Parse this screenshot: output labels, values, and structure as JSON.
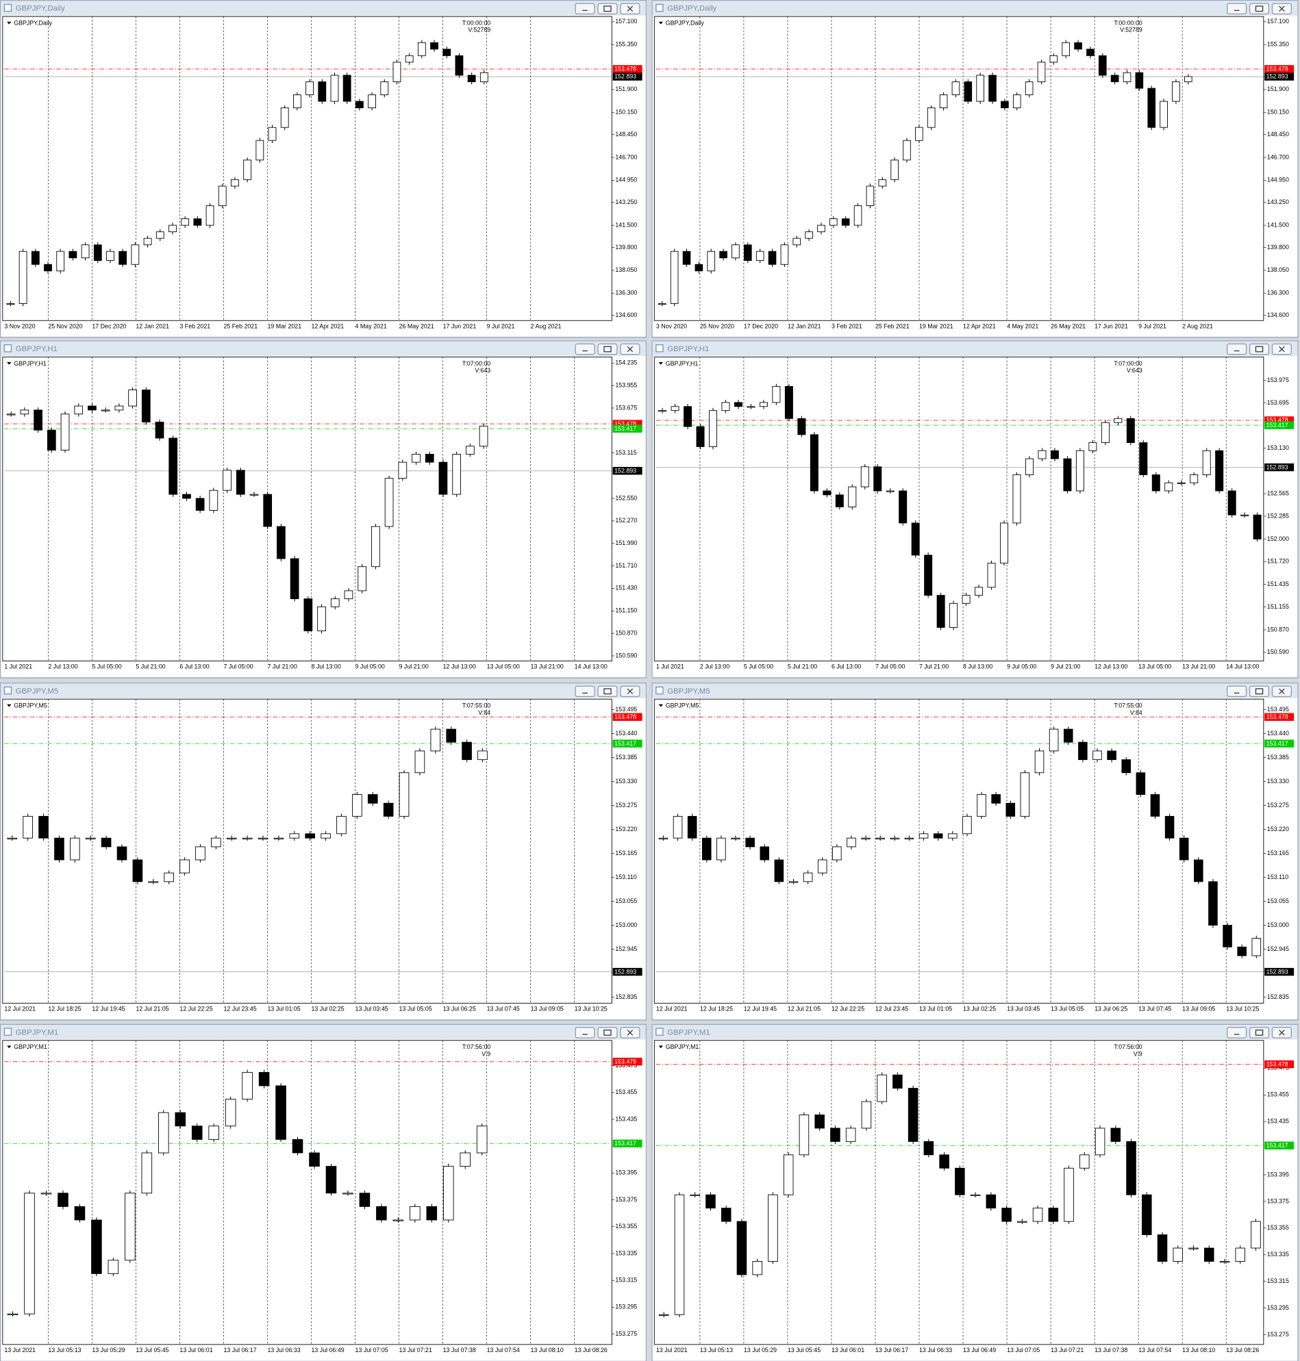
{
  "windows": [
    {
      "title": "GBPJPY,Daily",
      "chart_data": {
        "type": "candlestick",
        "symbol": "GBPJPY,Daily",
        "info": [
          "T:00:00:00",
          "V:52789"
        ],
        "time_labels": [
          "3 Nov 2020",
          "25 Nov 2020",
          "17 Dec 2020",
          "12 Jan 2021",
          "3 Feb 2021",
          "25 Feb 2021",
          "19 Mar 2021",
          "12 Apr 2021",
          "4 May 2021",
          "26 May 2021",
          "17 Jun 2021",
          "9 Jul 2021",
          "2 Aug 2021"
        ],
        "ylim": [
          134.33,
          157.37
        ],
        "yticks": [
          {
            "value": 157.1,
            "label": "157.100"
          },
          {
            "value": 155.35,
            "label": "155.350"
          },
          {
            "value": 151.9,
            "label": "151.900"
          },
          {
            "value": 150.15,
            "label": "150.150"
          },
          {
            "value": 148.45,
            "label": "148.450"
          },
          {
            "value": 146.7,
            "label": "146.700"
          },
          {
            "value": 144.95,
            "label": "144.950"
          },
          {
            "value": 143.25,
            "label": "143.250"
          },
          {
            "value": 141.5,
            "label": "141.500"
          },
          {
            "value": 139.8,
            "label": "139.800"
          },
          {
            "value": 138.05,
            "label": "138.050"
          },
          {
            "value": 136.3,
            "label": "136.300"
          },
          {
            "value": 134.6,
            "label": "134.600"
          }
        ],
        "price_lines": [
          {
            "value": 153.478,
            "label": "153.478",
            "color": "#ff0000"
          },
          {
            "value": 152.893,
            "label": "152.893",
            "color": "#000000"
          }
        ],
        "values": [
          135.5,
          139.5,
          138.5,
          138.0,
          139.5,
          139.0,
          140.0,
          138.8,
          139.5,
          138.5,
          140.0,
          140.5,
          141.0,
          141.5,
          142.0,
          141.5,
          143.0,
          144.5,
          145.0,
          146.5,
          148.0,
          149.0,
          150.5,
          151.5,
          152.5,
          151.0,
          153.0,
          151.0,
          150.5,
          151.5,
          152.5,
          154.0,
          154.5,
          155.5,
          155.0,
          154.5,
          153.0,
          152.5,
          153.2
        ]
      }
    },
    {
      "title": "GBPJPY,Daily",
      "chart_data": {
        "type": "candlestick",
        "symbol": "GBPJPY,Daily",
        "info": [
          "T:00:00:00",
          "V:52789"
        ],
        "time_labels": [
          "3 Nov 2020",
          "25 Nov 2020",
          "17 Dec 2020",
          "12 Jan 2021",
          "3 Feb 2021",
          "25 Feb 2021",
          "19 Mar 2021",
          "12 Apr 2021",
          "4 May 2021",
          "26 May 2021",
          "17 Jun 2021",
          "9 Jul 2021",
          "2 Aug 2021"
        ],
        "ylim": [
          134.33,
          157.37
        ],
        "yticks": [
          {
            "value": 157.1,
            "label": "157.100"
          },
          {
            "value": 155.35,
            "label": "155.350"
          },
          {
            "value": 151.9,
            "label": "151.900"
          },
          {
            "value": 150.15,
            "label": "150.150"
          },
          {
            "value": 148.45,
            "label": "148.450"
          },
          {
            "value": 146.7,
            "label": "146.700"
          },
          {
            "value": 144.95,
            "label": "144.950"
          },
          {
            "value": 143.25,
            "label": "143.250"
          },
          {
            "value": 141.5,
            "label": "141.500"
          },
          {
            "value": 139.8,
            "label": "139.800"
          },
          {
            "value": 138.05,
            "label": "138.050"
          },
          {
            "value": 136.3,
            "label": "136.300"
          },
          {
            "value": 134.6,
            "label": "134.600"
          }
        ],
        "price_lines": [
          {
            "value": 153.478,
            "label": "153.478",
            "color": "#ff0000"
          },
          {
            "value": 152.893,
            "label": "152.893",
            "color": "#000000"
          }
        ],
        "values": [
          135.5,
          139.5,
          138.5,
          138.0,
          139.5,
          139.0,
          140.0,
          138.8,
          139.5,
          138.5,
          140.0,
          140.5,
          141.0,
          141.5,
          142.0,
          141.5,
          143.0,
          144.5,
          145.0,
          146.5,
          148.0,
          149.0,
          150.5,
          151.5,
          152.5,
          151.0,
          153.0,
          151.0,
          150.5,
          151.5,
          152.5,
          154.0,
          154.5,
          155.5,
          155.0,
          154.5,
          153.0,
          152.5,
          153.2,
          152.0,
          149.0,
          151.0,
          152.5,
          152.9
        ]
      }
    },
    {
      "title": "GBPJPY,H1",
      "chart_data": {
        "type": "candlestick",
        "symbol": "GBPJPY,H1",
        "info": [
          "T:07:00:00",
          "V:643"
        ],
        "time_labels": [
          "1 Jul 2021",
          "2 Jul 13:00",
          "5 Jul 05:00",
          "5 Jul 21:00",
          "6 Jul 13:00",
          "7 Jul 05:00",
          "7 Jul 21:00",
          "8 Jul 13:00",
          "9 Jul 05:00",
          "9 Jul 21:00",
          "12 Jul 13:00",
          "13 Jul 05:00",
          "13 Jul 21:00",
          "14 Jul 13:00"
        ],
        "ylim": [
          150.547,
          154.289
        ],
        "yticks": [
          154.235,
          153.955,
          153.675,
          153.115,
          {
            "value": 152.55,
            "label": "152.550"
          },
          {
            "value": 152.27,
            "label": "152.270"
          },
          {
            "value": 151.99,
            "label": "151.990"
          },
          {
            "value": 151.71,
            "label": "151.710"
          },
          {
            "value": 151.43,
            "label": "151.430"
          },
          {
            "value": 151.15,
            "label": "151.150"
          },
          {
            "value": 150.87,
            "label": "150.870"
          },
          {
            "value": 150.59,
            "label": "150.590"
          }
        ],
        "price_lines": [
          {
            "value": 153.478,
            "label": "153.478",
            "color": "#ff0000"
          },
          {
            "value": 153.417,
            "label": "153.417",
            "color": "#00cc00"
          },
          {
            "value": 152.893,
            "label": "152.893",
            "color": "#000000"
          }
        ],
        "values": [
          153.6,
          153.65,
          153.4,
          153.15,
          153.6,
          153.7,
          153.65,
          153.65,
          153.7,
          153.9,
          153.5,
          153.3,
          152.6,
          152.55,
          152.4,
          152.65,
          152.9,
          152.6,
          152.6,
          152.2,
          151.8,
          151.3,
          150.9,
          151.2,
          151.3,
          151.4,
          151.7,
          152.2,
          152.8,
          153.0,
          153.1,
          153.0,
          152.6,
          153.1,
          153.2,
          153.45
        ]
      }
    },
    {
      "title": "GBPJPY,H1",
      "chart_data": {
        "type": "candlestick",
        "symbol": "GBPJPY,H1",
        "info": [
          "T:07:00:00",
          "V:643"
        ],
        "time_labels": [
          "1 Jul 2021",
          "2 Jul 13:00",
          "5 Jul 05:00",
          "5 Jul 21:00",
          "6 Jul 13:00",
          "7 Jul 05:00",
          "7 Jul 21:00",
          "8 Jul 13:00",
          "9 Jul 05:00",
          "9 Jul 21:00",
          "12 Jul 13:00",
          "13 Jul 05:00",
          "13 Jul 21:00",
          "14 Jul 13:00"
        ],
        "ylim": [
          150.504,
          154.245
        ],
        "yticks": [
          153.975,
          153.695,
          {
            "value": 153.13,
            "label": "153.130"
          },
          152.565,
          152.285,
          {
            "value": 152,
            "label": "152.000"
          },
          {
            "value": 151.72,
            "label": "151.720"
          },
          151.435,
          151.155,
          {
            "value": 150.87,
            "label": "150.870"
          },
          {
            "value": 150.59,
            "label": "150.590"
          }
        ],
        "price_lines": [
          {
            "value": 153.478,
            "label": "153.478",
            "color": "#ff0000"
          },
          {
            "value": 153.417,
            "label": "153.417",
            "color": "#00cc00"
          },
          {
            "value": 152.893,
            "label": "152.893",
            "color": "#000000"
          }
        ],
        "values": [
          153.6,
          153.65,
          153.4,
          153.15,
          153.6,
          153.7,
          153.65,
          153.65,
          153.7,
          153.9,
          153.5,
          153.3,
          152.6,
          152.55,
          152.4,
          152.65,
          152.9,
          152.6,
          152.6,
          152.2,
          151.8,
          151.3,
          150.9,
          151.2,
          151.3,
          151.4,
          151.7,
          152.2,
          152.8,
          153.0,
          153.1,
          153.0,
          152.6,
          153.1,
          153.2,
          153.45,
          153.5,
          153.2,
          152.8,
          152.6,
          152.7,
          152.7,
          152.8,
          153.1,
          152.6,
          152.3,
          152.3,
          152.0
        ]
      }
    },
    {
      "title": "GBPJPY,M5",
      "chart_data": {
        "type": "candlestick",
        "symbol": "GBPJPY,M5",
        "info": [
          "T:07:55:00",
          "V:84"
        ],
        "time_labels": [
          "12 Jul 2021",
          "12 Jul 18:25",
          "12 Jul 19:45",
          "12 Jul 21:05",
          "12 Jul 22:25",
          "12 Jul 23:45",
          "13 Jul 01:05",
          "13 Jul 02:25",
          "13 Jul 03:45",
          "13 Jul 05:05",
          "13 Jul 06:25",
          "13 Jul 07:45",
          "13 Jul 09:05",
          "13 Jul 10:25"
        ],
        "ylim": [
          152.825,
          153.515
        ],
        "yticks": [
          153.495,
          {
            "value": 153.44,
            "label": "153.440"
          },
          153.385,
          {
            "value": 153.33,
            "label": "153.330"
          },
          153.275,
          {
            "value": 153.22,
            "label": "153.220"
          },
          153.165,
          {
            "value": 153.11,
            "label": "153.110"
          },
          153.055,
          {
            "value": 153,
            "label": "153.000"
          },
          152.945,
          152.835
        ],
        "price_lines": [
          {
            "value": 153.478,
            "label": "153.478",
            "color": "#ff0000"
          },
          {
            "value": 153.417,
            "label": "153.417",
            "color": "#00cc00"
          },
          {
            "value": 152.893,
            "label": "152.893",
            "color": "#000000"
          }
        ],
        "values": [
          153.2,
          153.25,
          153.2,
          153.15,
          153.2,
          153.2,
          153.18,
          153.15,
          153.1,
          153.1,
          153.12,
          153.15,
          153.18,
          153.2,
          153.2,
          153.2,
          153.2,
          153.2,
          153.21,
          153.2,
          153.21,
          153.25,
          153.3,
          153.28,
          153.25,
          153.35,
          153.4,
          153.45,
          153.42,
          153.38,
          153.4
        ]
      }
    },
    {
      "title": "GBPJPY,M5",
      "chart_data": {
        "type": "candlestick",
        "symbol": "GBPJPY,M5",
        "info": [
          "T:07:55:00",
          "V:84"
        ],
        "time_labels": [
          "12 Jul 2021",
          "12 Jul 18:25",
          "12 Jul 19:45",
          "12 Jul 21:05",
          "12 Jul 22:25",
          "12 Jul 23:45",
          "13 Jul 01:05",
          "13 Jul 02:25",
          "13 Jul 03:45",
          "13 Jul 05:05",
          "13 Jul 06:25",
          "13 Jul 07:45",
          "13 Jul 09:05",
          "13 Jul 10:25"
        ],
        "ylim": [
          152.825,
          153.515
        ],
        "yticks": [
          153.495,
          {
            "value": 153.44,
            "label": "153.440"
          },
          153.385,
          {
            "value": 153.33,
            "label": "153.330"
          },
          153.275,
          {
            "value": 153.22,
            "label": "153.220"
          },
          153.165,
          {
            "value": 153.11,
            "label": "153.110"
          },
          153.055,
          {
            "value": 153,
            "label": "153.000"
          },
          152.945,
          152.835
        ],
        "price_lines": [
          {
            "value": 153.478,
            "label": "153.478",
            "color": "#ff0000"
          },
          {
            "value": 153.417,
            "label": "153.417",
            "color": "#00cc00"
          },
          {
            "value": 152.893,
            "label": "152.893",
            "color": "#000000"
          }
        ],
        "values": [
          153.2,
          153.25,
          153.2,
          153.15,
          153.2,
          153.2,
          153.18,
          153.15,
          153.1,
          153.1,
          153.12,
          153.15,
          153.18,
          153.2,
          153.2,
          153.2,
          153.2,
          153.2,
          153.21,
          153.2,
          153.21,
          153.25,
          153.3,
          153.28,
          153.25,
          153.35,
          153.4,
          153.45,
          153.42,
          153.38,
          153.4,
          153.38,
          153.35,
          153.3,
          153.25,
          153.2,
          153.15,
          153.1,
          153.0,
          152.95,
          152.93,
          152.97
        ]
      }
    },
    {
      "title": "GBPJPY,M1",
      "chart_data": {
        "type": "candlestick",
        "symbol": "GBPJPY,M1",
        "info": [
          "T:07:56:00",
          "V:9"
        ],
        "time_labels": [
          "13 Jul 2021",
          "13 Jul 05:13",
          "13 Jul 05:29",
          "13 Jul 05:45",
          "13 Jul 06:01",
          "13 Jul 06:17",
          "13 Jul 06:33",
          "13 Jul 06:49",
          "13 Jul 07:05",
          "13 Jul 07:21",
          "13 Jul 07:38",
          "13 Jul 07:54",
          "13 Jul 08:10",
          "13 Jul 08:26"
        ],
        "ylim": [
          153.2685,
          153.4925
        ],
        "yticks": [
          153.475,
          153.455,
          153.435,
          153.395,
          153.375,
          153.355,
          153.335,
          153.315,
          153.295,
          153.275
        ],
        "price_lines": [
          {
            "value": 153.478,
            "label": "153.478",
            "color": "#ff0000"
          },
          {
            "value": 153.417,
            "label": "153.417",
            "color": "#00cc00"
          }
        ],
        "values": [
          153.29,
          153.38,
          153.38,
          153.37,
          153.36,
          153.32,
          153.33,
          153.38,
          153.41,
          153.44,
          153.43,
          153.42,
          153.43,
          153.45,
          153.47,
          153.46,
          153.42,
          153.41,
          153.4,
          153.38,
          153.38,
          153.37,
          153.36,
          153.36,
          153.37,
          153.36,
          153.4,
          153.41,
          153.43
        ]
      }
    },
    {
      "title": "GBPJPY,M1",
      "chart_data": {
        "type": "candlestick",
        "symbol": "GBPJPY,M1",
        "info": [
          "T:07:56:00",
          "V:9"
        ],
        "time_labels": [
          "13 Jul 2021",
          "13 Jul 05:13",
          "13 Jul 05:29",
          "13 Jul 05:45",
          "13 Jul 06:01",
          "13 Jul 06:17",
          "13 Jul 06:33",
          "13 Jul 06:49",
          "13 Jul 07:05",
          "13 Jul 07:21",
          "13 Jul 07:38",
          "13 Jul 07:54",
          "13 Jul 08:10",
          "13 Jul 08:26"
        ],
        "ylim": [
          153.2689,
          153.4946
        ],
        "yticks": [
          153.475,
          153.455,
          153.435,
          153.395,
          153.375,
          153.355,
          153.335,
          153.315,
          153.295,
          153.275
        ],
        "price_lines": [
          {
            "value": 153.478,
            "label": "153.478",
            "color": "#ff0000"
          },
          {
            "value": 153.417,
            "label": "153.417",
            "color": "#00cc00"
          }
        ],
        "values": [
          153.29,
          153.38,
          153.38,
          153.37,
          153.36,
          153.32,
          153.33,
          153.38,
          153.41,
          153.44,
          153.43,
          153.42,
          153.43,
          153.45,
          153.47,
          153.46,
          153.42,
          153.41,
          153.4,
          153.38,
          153.38,
          153.37,
          153.36,
          153.36,
          153.37,
          153.36,
          153.4,
          153.41,
          153.43,
          153.42,
          153.38,
          153.35,
          153.33,
          153.34,
          153.34,
          153.33,
          153.33,
          153.34,
          153.36
        ]
      }
    }
  ]
}
